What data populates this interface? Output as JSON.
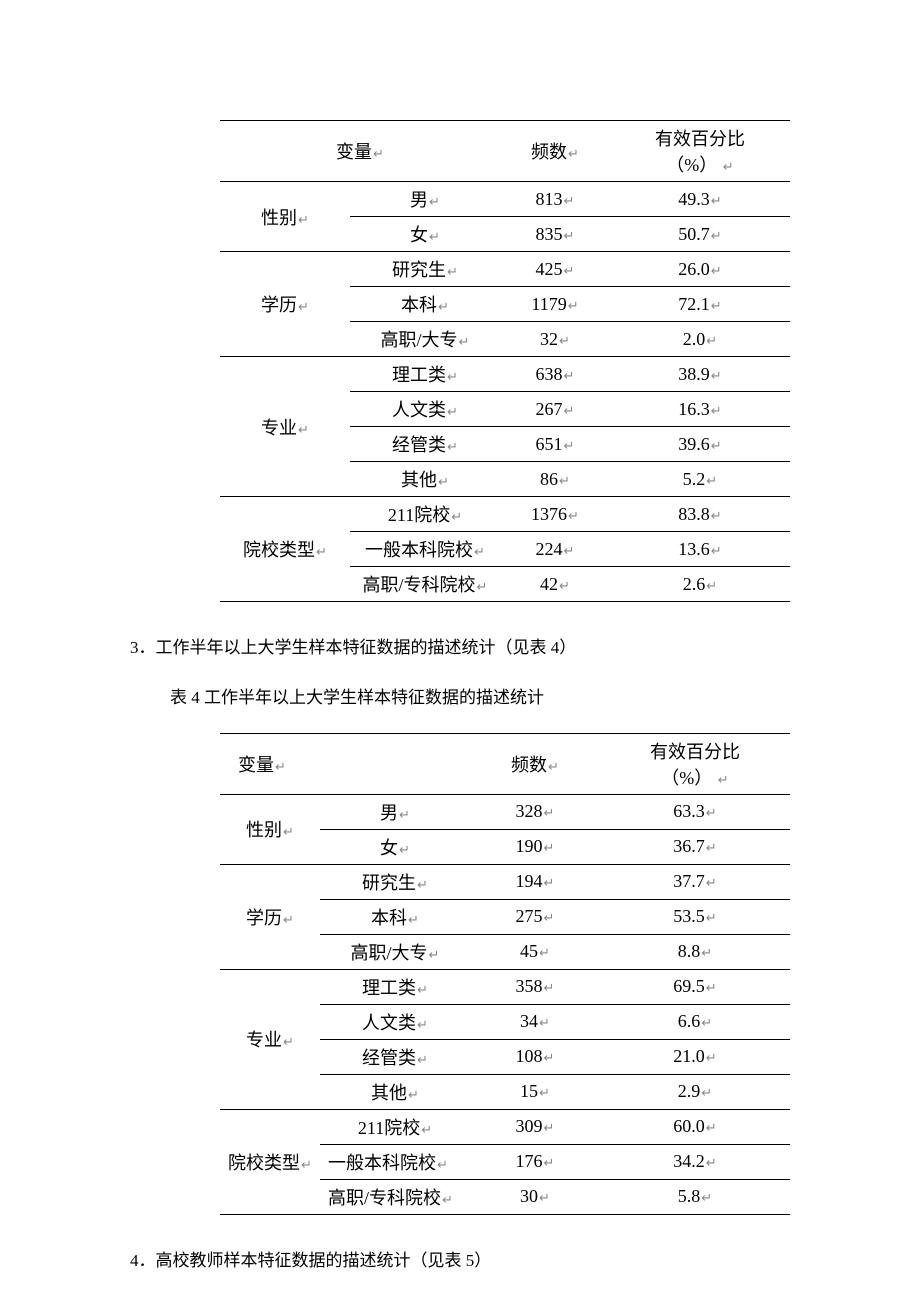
{
  "return_mark": "↵",
  "headers": {
    "variable": "变量",
    "frequency": "频数",
    "valid_pct_line1": "有效百分比",
    "valid_pct_line2": "（%）"
  },
  "table3": {
    "groups": [
      {
        "label": "性别",
        "rows": [
          {
            "sub": "男",
            "freq": "813",
            "pct": "49.3"
          },
          {
            "sub": "女",
            "freq": "835",
            "pct": "50.7"
          }
        ]
      },
      {
        "label": "学历",
        "rows": [
          {
            "sub": "研究生",
            "freq": "425",
            "pct": "26.0"
          },
          {
            "sub": "本科",
            "freq": "1179",
            "pct": "72.1"
          },
          {
            "sub": "高职/大专",
            "freq": "32",
            "pct": "2.0"
          }
        ]
      },
      {
        "label": "专业",
        "rows": [
          {
            "sub": "理工类",
            "freq": "638",
            "pct": "38.9"
          },
          {
            "sub": "人文类",
            "freq": "267",
            "pct": "16.3"
          },
          {
            "sub": "经管类",
            "freq": "651",
            "pct": "39.6"
          },
          {
            "sub": "其他",
            "freq": "86",
            "pct": "5.2"
          }
        ]
      },
      {
        "label": "院校类型",
        "rows": [
          {
            "sub": "211院校",
            "freq": "1376",
            "pct": "83.8"
          },
          {
            "sub": "一般本科院校",
            "freq": "224",
            "pct": "13.6"
          },
          {
            "sub": "高职/专科院校",
            "freq": "42",
            "pct": "2.6"
          }
        ]
      }
    ]
  },
  "para3": "3．工作半年以上大学生样本特征数据的描述统计（见表 4）",
  "caption4": "表 4 工作半年以上大学生样本特征数据的描述统计",
  "table4": {
    "groups": [
      {
        "label": "性别",
        "rows": [
          {
            "sub": "男",
            "freq": "328",
            "pct": "63.3"
          },
          {
            "sub": "女",
            "freq": "190",
            "pct": "36.7"
          }
        ]
      },
      {
        "label": "学历",
        "rows": [
          {
            "sub": "研究生",
            "freq": "194",
            "pct": "37.7"
          },
          {
            "sub": "本科",
            "freq": "275",
            "pct": "53.5"
          },
          {
            "sub": "高职/大专",
            "freq": "45",
            "pct": "8.8"
          }
        ]
      },
      {
        "label": "专业",
        "rows": [
          {
            "sub": "理工类",
            "freq": "358",
            "pct": "69.5"
          },
          {
            "sub": "人文类",
            "freq": "34",
            "pct": "6.6"
          },
          {
            "sub": "经管类",
            "freq": "108",
            "pct": "21.0"
          },
          {
            "sub": "其他",
            "freq": "15",
            "pct": "2.9"
          }
        ]
      },
      {
        "label": "院校类型",
        "rows": [
          {
            "sub": "211院校",
            "freq": "309",
            "pct": "60.0"
          },
          {
            "sub": "一般本科院校",
            "freq": "176",
            "pct": "34.2"
          },
          {
            "sub": "高职/专科院校",
            "freq": "30",
            "pct": "5.8"
          }
        ]
      }
    ]
  },
  "para4": "4．高校教师样本特征数据的描述统计（见表 5）"
}
